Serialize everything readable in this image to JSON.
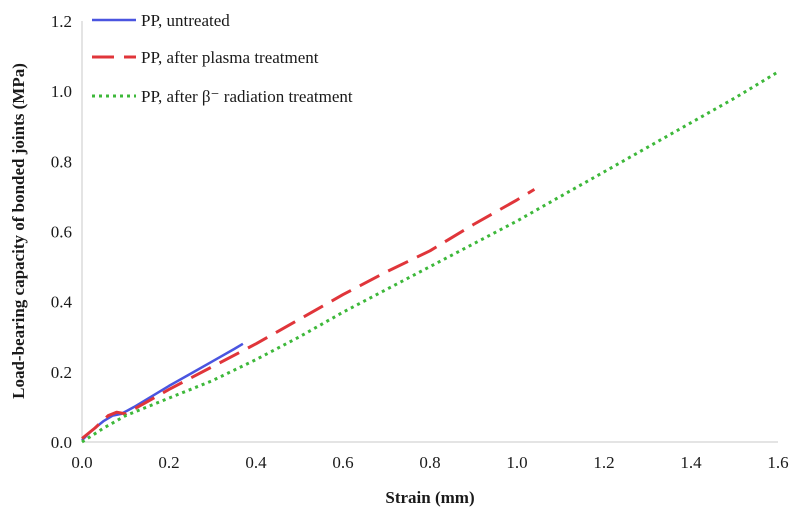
{
  "chart_data": {
    "type": "line",
    "title": "",
    "xlabel": "Strain (mm)",
    "ylabel": "Load-bearing capacity of bonded joints (MPa)",
    "xlim": [
      0,
      1.6
    ],
    "ylim": [
      0,
      1.2
    ],
    "x_ticks": [
      "0.0",
      "0.2",
      "0.4",
      "0.6",
      "0.8",
      "1.0",
      "1.2",
      "1.4",
      "1.6"
    ],
    "y_ticks": [
      "0.0",
      "0.2",
      "0.4",
      "0.6",
      "0.8",
      "1.0",
      "1.2"
    ],
    "grid": false,
    "legend_position": "top-left",
    "series": [
      {
        "name": "PP, untreated",
        "color": "#4a55e0",
        "dash": "solid",
        "x": [
          0.0,
          0.02,
          0.05,
          0.07,
          0.09,
          0.12,
          0.16,
          0.2,
          0.25,
          0.3,
          0.35,
          0.37
        ],
        "y": [
          0.005,
          0.03,
          0.06,
          0.075,
          0.08,
          0.1,
          0.13,
          0.16,
          0.195,
          0.23,
          0.265,
          0.28
        ]
      },
      {
        "name": "PP, after plasma treatment",
        "color": "#e0353a",
        "dash": "dashed",
        "x": [
          0.0,
          0.03,
          0.06,
          0.08,
          0.1,
          0.15,
          0.2,
          0.3,
          0.4,
          0.5,
          0.6,
          0.7,
          0.8,
          0.9,
          1.0,
          1.04
        ],
        "y": [
          0.01,
          0.04,
          0.075,
          0.085,
          0.08,
          0.115,
          0.15,
          0.215,
          0.28,
          0.35,
          0.42,
          0.485,
          0.545,
          0.62,
          0.69,
          0.72
        ]
      },
      {
        "name": "PP, after β⁻ radiation treatment",
        "color": "#3db83a",
        "dash": "dotted",
        "x": [
          0.0,
          0.05,
          0.1,
          0.2,
          0.3,
          0.4,
          0.5,
          0.6,
          0.7,
          0.8,
          0.9,
          1.0,
          1.1,
          1.2,
          1.3,
          1.4,
          1.5,
          1.6
        ],
        "y": [
          0.0,
          0.04,
          0.075,
          0.125,
          0.175,
          0.235,
          0.3,
          0.37,
          0.435,
          0.5,
          0.565,
          0.63,
          0.7,
          0.77,
          0.84,
          0.91,
          0.98,
          1.055
        ]
      }
    ]
  }
}
